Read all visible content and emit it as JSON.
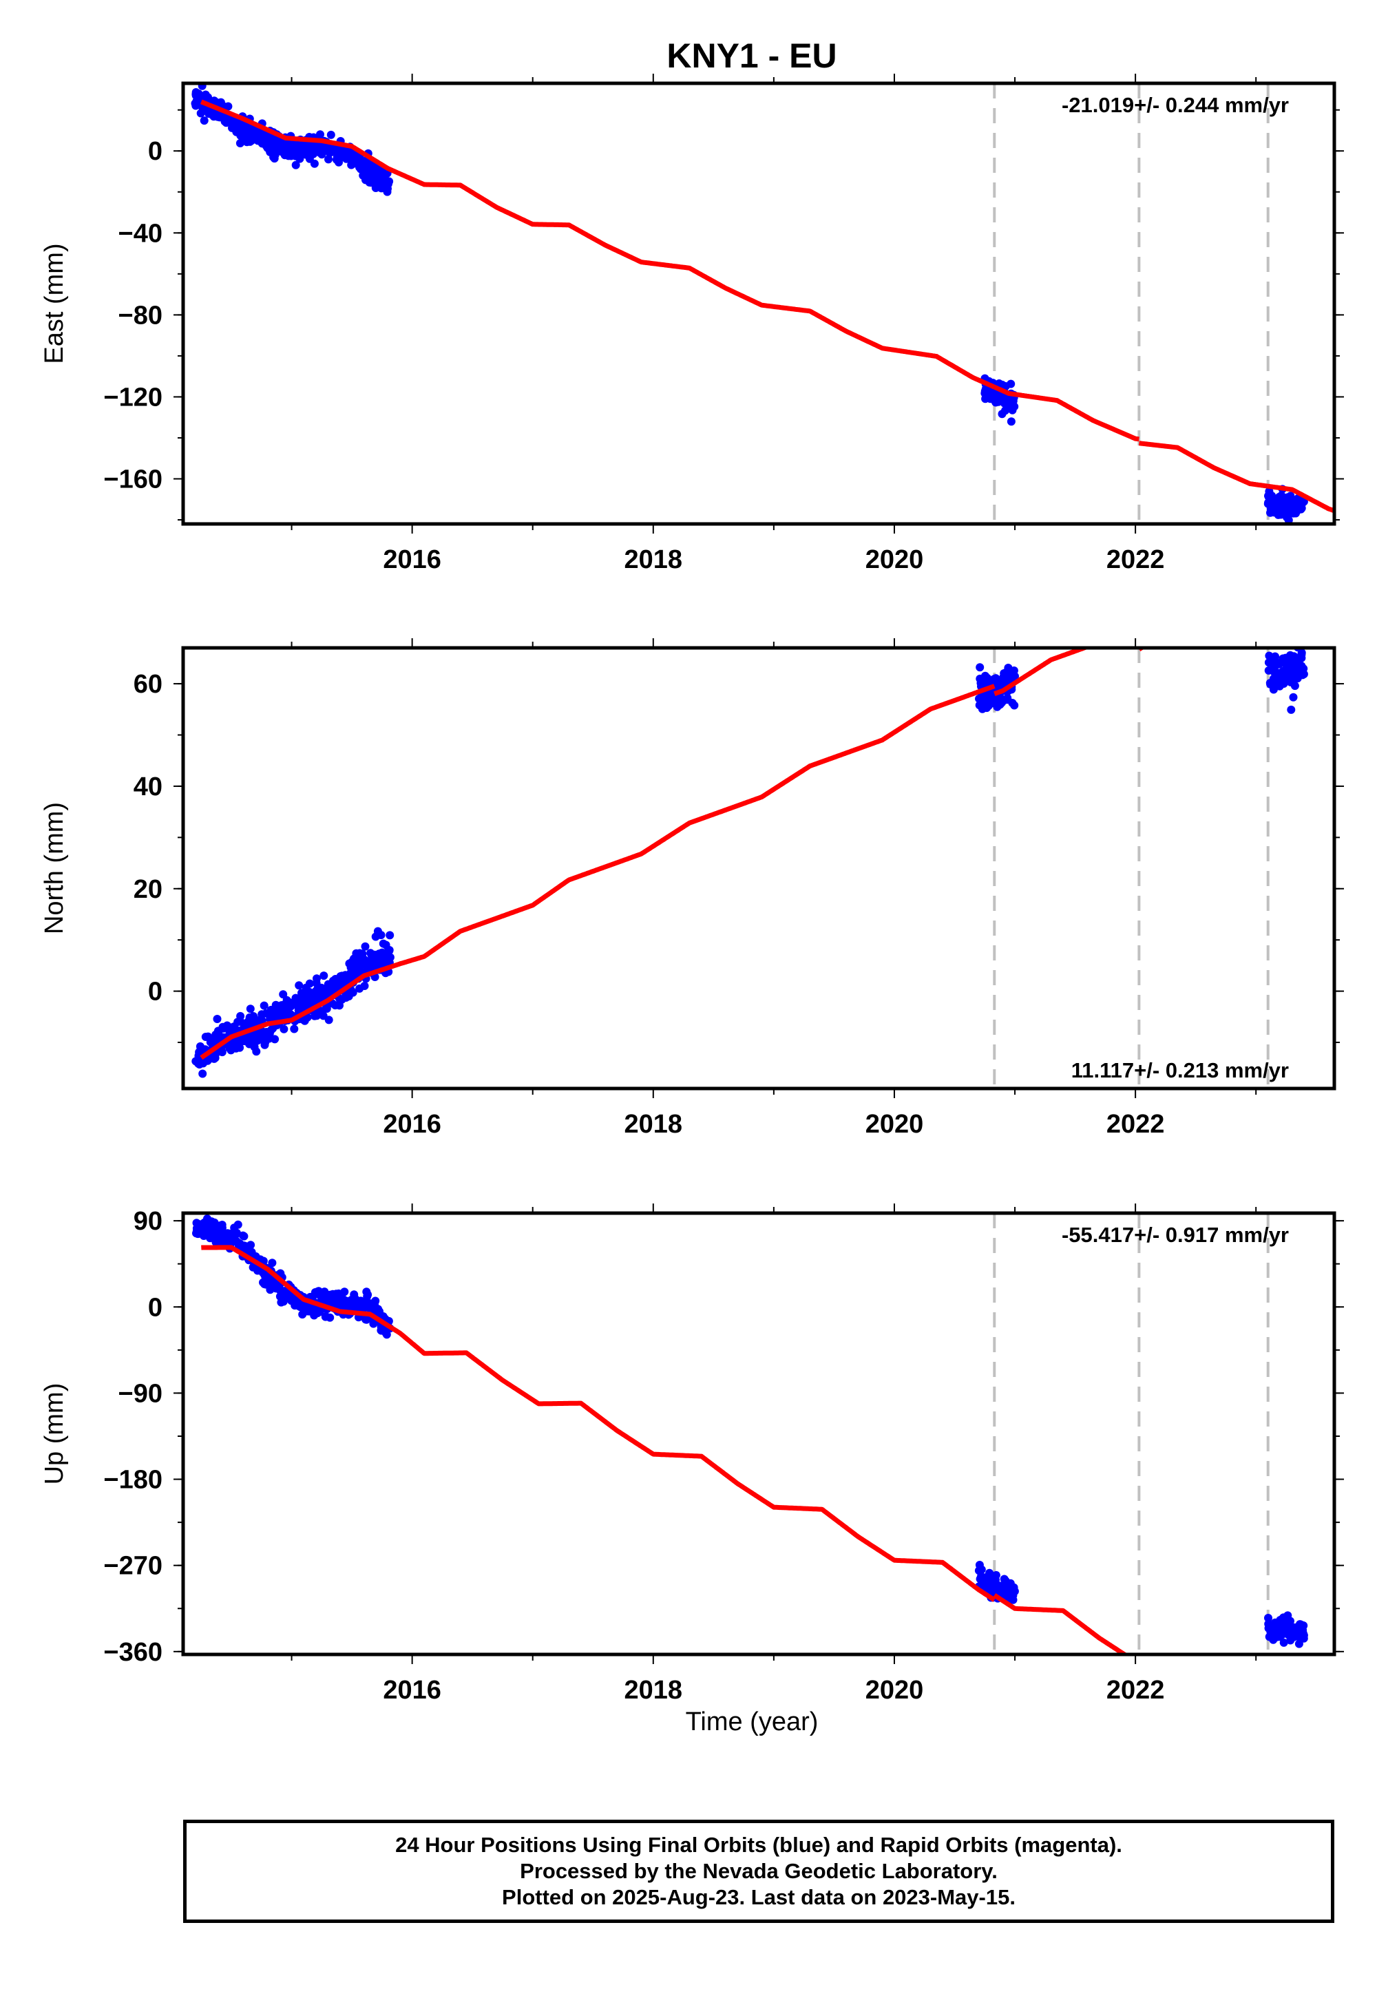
{
  "figure": {
    "title": "KNY1 - EU",
    "xlabel": "Time (year)"
  },
  "footer": {
    "line1": "24 Hour Positions Using Final Orbits (blue) and Rapid Orbits (magenta).",
    "line2": "Processed by the Nevada Geodetic Laboratory.",
    "line3": "Plotted on 2025-Aug-23. Last data on 2023-May-15."
  },
  "colors": {
    "data_points": "#0000ff",
    "model_line": "#ff0000",
    "event_lines": "#c0c0c0",
    "frame": "#000000"
  },
  "chart_data": [
    {
      "type": "scatter",
      "component": "east",
      "ylabel": "East (mm)",
      "rate_label": "-21.019+/- 0.244 mm/yr",
      "rate_position": "top-right",
      "xlim": [
        2014.1,
        2023.65
      ],
      "ylim": [
        -182,
        33
      ],
      "xticks": [
        2016,
        2018,
        2020,
        2022
      ],
      "yticks": [
        0,
        -40,
        -80,
        -120,
        -160
      ],
      "ytick_labels": [
        "0",
        "−40",
        "−80",
        "−120",
        "−160"
      ],
      "rate": -21.019,
      "breaks": [
        2020.83,
        2022.03,
        2023.1
      ],
      "break_offsets": [
        0,
        -2,
        0
      ],
      "model_anchor": [
        2014.25,
        24
      ],
      "anomaly": [
        [
          2014.25,
          0
        ],
        [
          2014.6,
          -1
        ],
        [
          2014.95,
          -3
        ],
        [
          2015.25,
          2
        ],
        [
          2015.5,
          4.5
        ],
        [
          2015.8,
          0
        ],
        [
          2016.1,
          -1.5
        ],
        [
          2016.4,
          4.5
        ],
        [
          2016.7,
          0
        ],
        [
          2017.0,
          -2
        ],
        [
          2017.3,
          4
        ],
        [
          2017.6,
          0.5
        ],
        [
          2017.9,
          -1.5
        ],
        [
          2018.3,
          4
        ],
        [
          2018.6,
          0.5
        ],
        [
          2018.9,
          -1.5
        ],
        [
          2019.3,
          4
        ],
        [
          2019.6,
          0.5
        ],
        [
          2019.9,
          -1.5
        ],
        [
          2020.35,
          4
        ],
        [
          2020.65,
          0
        ],
        [
          2020.95,
          -1.5
        ],
        [
          2021.35,
          3.5
        ],
        [
          2021.65,
          0
        ],
        [
          2022.0,
          -1.5
        ],
        [
          2022.35,
          3.5
        ],
        [
          2022.65,
          0
        ],
        [
          2022.95,
          -1.5
        ],
        [
          2023.3,
          3
        ],
        [
          2023.6,
          0
        ]
      ],
      "series": [
        {
          "name": "data",
          "segments": [
            {
              "x": [
                2014.2,
                2014.3,
                2014.4,
                2014.5,
                2014.6,
                2014.7,
                2014.8,
                2014.9,
                2015.0,
                2015.1,
                2015.2,
                2015.3,
                2015.4,
                2015.5,
                2015.6,
                2015.7,
                2015.82
              ],
              "y": [
                25,
                22,
                19,
                15,
                11,
                8,
                5,
                3,
                2,
                1,
                1,
                1,
                0,
                -3,
                -8,
                -12,
                -15
              ]
            },
            {
              "x": [
                2020.75,
                2020.8,
                2020.85,
                2020.9,
                2020.95,
                2021.0
              ],
              "y": [
                -116,
                -118,
                -120,
                -121,
                -122,
                -122
              ]
            },
            {
              "x": [
                2023.1,
                2023.15,
                2023.2,
                2023.25,
                2023.3,
                2023.35,
                2023.4
              ],
              "y": [
                -172,
                -173,
                -173,
                -172,
                -173,
                -174,
                -174
              ]
            }
          ],
          "scatter": 3
        }
      ]
    },
    {
      "type": "scatter",
      "component": "north",
      "ylabel": "North (mm)",
      "rate_label": "11.117+/- 0.213 mm/yr",
      "rate_position": "bottom-right",
      "xlim": [
        2014.1,
        2023.65
      ],
      "ylim": [
        -19,
        67
      ],
      "xticks": [
        2016,
        2018,
        2020,
        2022
      ],
      "yticks": [
        60,
        40,
        20,
        0
      ],
      "ytick_labels": [
        "60",
        "40",
        "20",
        "0"
      ],
      "rate": 11.117,
      "breaks": [
        2020.83,
        2022.03,
        2023.1
      ],
      "break_offsets": [
        -1.5,
        -5,
        -11
      ],
      "model_anchor": [
        2014.25,
        -13
      ],
      "anomaly": [
        [
          2014.25,
          0
        ],
        [
          2014.5,
          1.3
        ],
        [
          2014.8,
          0.5
        ],
        [
          2015.0,
          -1
        ],
        [
          2015.3,
          -0.5
        ],
        [
          2015.6,
          1
        ],
        [
          2015.9,
          0
        ],
        [
          2016.1,
          -0.8
        ],
        [
          2016.4,
          0.8
        ],
        [
          2016.7,
          0
        ],
        [
          2017.0,
          -0.8
        ],
        [
          2017.3,
          0.8
        ],
        [
          2017.6,
          0
        ],
        [
          2017.9,
          -0.8
        ],
        [
          2018.3,
          0.8
        ],
        [
          2018.6,
          0
        ],
        [
          2018.9,
          -0.8
        ],
        [
          2019.3,
          0.8
        ],
        [
          2019.6,
          0
        ],
        [
          2019.9,
          -0.8
        ],
        [
          2020.3,
          0.8
        ],
        [
          2020.6,
          0
        ],
        [
          2020.9,
          -0.8
        ],
        [
          2021.3,
          0.8
        ],
        [
          2021.6,
          0
        ],
        [
          2021.9,
          -0.8
        ],
        [
          2022.3,
          0.8
        ],
        [
          2022.6,
          0
        ],
        [
          2022.9,
          -0.8
        ],
        [
          2023.3,
          0.8
        ],
        [
          2023.6,
          0
        ]
      ],
      "series": [
        {
          "name": "data",
          "segments": [
            {
              "x": [
                2014.2,
                2014.3,
                2014.4,
                2014.5,
                2014.6,
                2014.7,
                2014.8,
                2014.9,
                2015.0,
                2015.1,
                2015.2,
                2015.3,
                2015.4,
                2015.5,
                2015.6,
                2015.7,
                2015.82
              ],
              "y": [
                -14,
                -12,
                -10,
                -9,
                -8,
                -8,
                -7,
                -5,
                -4,
                -3,
                -2,
                -1,
                1,
                3,
                5,
                6,
                7
              ]
            },
            {
              "x": [
                2020.7,
                2020.75,
                2020.8,
                2020.85,
                2020.9,
                2020.95,
                2021.0
              ],
              "y": [
                58,
                58,
                59,
                58.5,
                59,
                59.5,
                60
              ]
            },
            {
              "x": [
                2023.1,
                2023.15,
                2023.2,
                2023.25,
                2023.3,
                2023.35,
                2023.4
              ],
              "y": [
                62,
                61.5,
                62,
                62.5,
                63,
                63,
                63
              ]
            }
          ],
          "scatter": 1.8
        }
      ]
    },
    {
      "type": "scatter",
      "component": "up",
      "ylabel": "Up (mm)",
      "rate_label": "-55.417+/- 0.917 mm/yr",
      "rate_position": "top-right",
      "xlim": [
        2014.1,
        2023.65
      ],
      "ylim": [
        -363,
        98
      ],
      "xticks": [
        2016,
        2018,
        2020,
        2022
      ],
      "yticks": [
        90,
        0,
        -90,
        -180,
        -270,
        -360
      ],
      "ytick_labels": [
        "90",
        "0",
        "−90",
        "−180",
        "−270",
        "−360"
      ],
      "rate": -55.417,
      "breaks": [
        2020.83,
        2022.03,
        2023.1
      ],
      "break_offsets": [
        5,
        0,
        0
      ],
      "model_anchor": [
        2014.25,
        62
      ],
      "anomaly": [
        [
          2014.25,
          0
        ],
        [
          2014.5,
          14
        ],
        [
          2014.8,
          8
        ],
        [
          2015.1,
          -7
        ],
        [
          2015.4,
          -3
        ],
        [
          2015.65,
          8
        ],
        [
          2015.9,
          2
        ],
        [
          2016.1,
          -8
        ],
        [
          2016.45,
          12
        ],
        [
          2016.75,
          0
        ],
        [
          2017.05,
          -8
        ],
        [
          2017.4,
          12
        ],
        [
          2017.7,
          0
        ],
        [
          2018.0,
          -8
        ],
        [
          2018.4,
          12
        ],
        [
          2018.7,
          0
        ],
        [
          2019.0,
          -8
        ],
        [
          2019.4,
          12
        ],
        [
          2019.7,
          0
        ],
        [
          2020.0,
          -8
        ],
        [
          2020.4,
          12
        ],
        [
          2020.7,
          0
        ],
        [
          2021.0,
          -8
        ],
        [
          2021.4,
          12
        ],
        [
          2021.7,
          0
        ],
        [
          2022.0,
          -8
        ],
        [
          2022.4,
          12
        ],
        [
          2022.7,
          0
        ],
        [
          2023.0,
          -8
        ],
        [
          2023.4,
          12
        ],
        [
          2023.65,
          0
        ]
      ],
      "series": [
        {
          "name": "data",
          "segments": [
            {
              "x": [
                2014.2,
                2014.3,
                2014.4,
                2014.5,
                2014.6,
                2014.7,
                2014.8,
                2014.9,
                2015.0,
                2015.1,
                2015.2,
                2015.3,
                2015.4,
                2015.5,
                2015.6,
                2015.7,
                2015.82
              ],
              "y": [
                83,
                80,
                78,
                72,
                62,
                48,
                33,
                22,
                12,
                5,
                2,
                2,
                2,
                2,
                -1,
                -10,
                -22
              ]
            },
            {
              "x": [
                2020.7,
                2020.75,
                2020.8,
                2020.85,
                2020.9,
                2020.95,
                2021.0
              ],
              "y": [
                -285,
                -288,
                -290,
                -292,
                -295,
                -297,
                -296
              ]
            },
            {
              "x": [
                2023.1,
                2023.15,
                2023.2,
                2023.25,
                2023.3,
                2023.35,
                2023.4
              ],
              "y": [
                -335,
                -340,
                -337,
                -334,
                -338,
                -340,
                -339
              ]
            }
          ],
          "scatter": 6
        }
      ]
    }
  ]
}
